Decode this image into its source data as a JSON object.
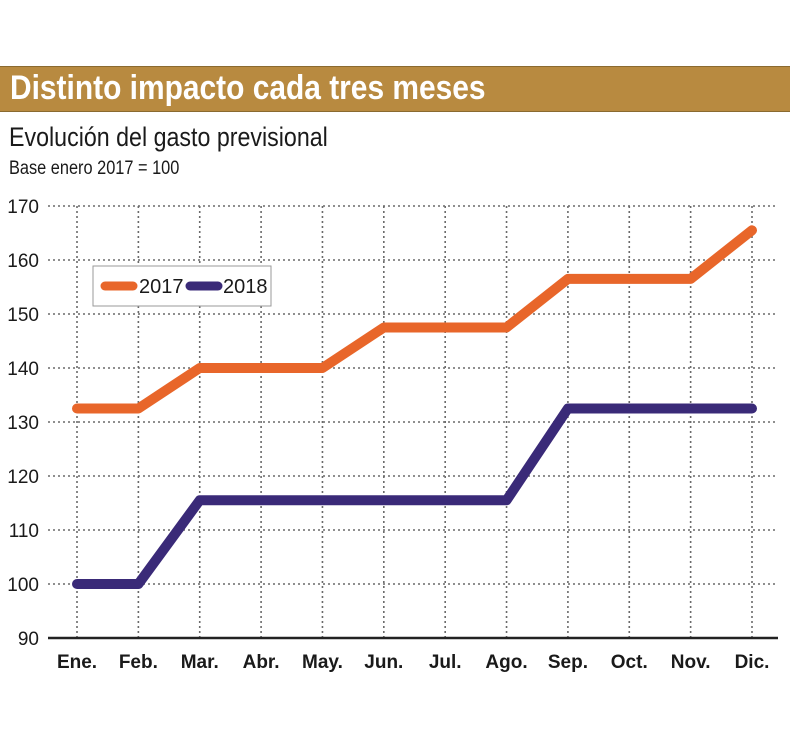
{
  "header": {
    "title": "Distinto impacto cada tres meses",
    "subtitle": "Evolución del gasto previsional",
    "base_note": "Base enero 2017 = 100"
  },
  "colors": {
    "banner": "#b88a40",
    "series_2017": "#e8662a",
    "series_2018": "#3a2a78",
    "grid": "#6a6a6a",
    "axis": "#222222"
  },
  "chart_data": {
    "type": "line",
    "title": "Distinto impacto cada tres meses",
    "subtitle": "Evolución del gasto previsional",
    "xlabel": "",
    "ylabel": "",
    "categories": [
      "Ene.",
      "Feb.",
      "Mar.",
      "Abr.",
      "May.",
      "Jun.",
      "Jul.",
      "Ago.",
      "Sep.",
      "Oct.",
      "Nov.",
      "Dic."
    ],
    "ylim": [
      90,
      170
    ],
    "yticks": [
      90,
      100,
      110,
      120,
      130,
      140,
      150,
      160,
      170
    ],
    "grid": true,
    "legend_position": "top-left",
    "series": [
      {
        "name": "2017",
        "color": "#e8662a",
        "values": [
          132.5,
          132.5,
          140,
          140,
          140,
          147.5,
          147.5,
          147.5,
          156.5,
          156.5,
          156.5,
          165.5
        ]
      },
      {
        "name": "2018",
        "color": "#3a2a78",
        "values": [
          100,
          100,
          115.5,
          115.5,
          115.5,
          115.5,
          115.5,
          115.5,
          132.5,
          132.5,
          132.5,
          132.5
        ]
      }
    ]
  }
}
